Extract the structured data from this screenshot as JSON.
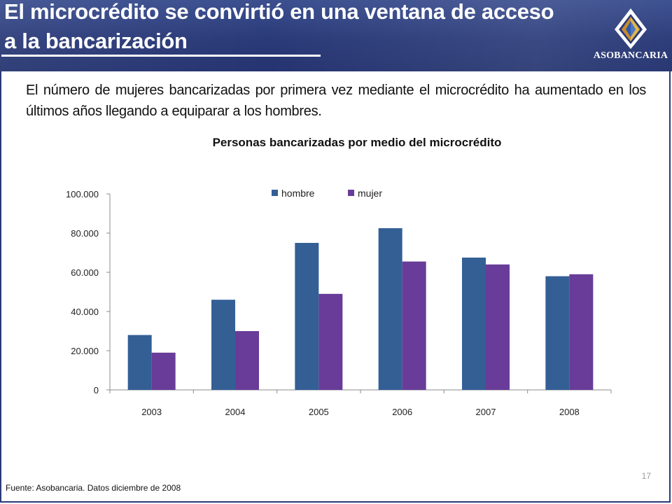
{
  "header": {
    "title": "El microcrédito se convirtió en una ventana de acceso a la bancarización",
    "background_color": "#2a3a78"
  },
  "logo": {
    "text": "ASOBANCARIA",
    "icon": "asobancaria-diamond-logo-icon"
  },
  "intro_text": "El número de mujeres bancarizadas por primera vez mediante el microcrédito ha aumentado en los últimos años llegando a equiparar a los hombres.",
  "chart_data": {
    "type": "bar",
    "title": "Personas bancarizadas por medio del microcrédito",
    "categories": [
      "2003",
      "2004",
      "2005",
      "2006",
      "2007",
      "2008"
    ],
    "series": [
      {
        "name": "hombre",
        "color": "#335f95",
        "values": [
          28000,
          46000,
          75000,
          82500,
          67500,
          58000
        ]
      },
      {
        "name": "mujer",
        "color": "#683c98",
        "values": [
          19000,
          30000,
          49000,
          65500,
          64000,
          59000
        ]
      }
    ],
    "ylim": [
      0,
      100000
    ],
    "yticks": [
      0,
      20000,
      40000,
      60000,
      80000,
      100000
    ],
    "ytick_labels": [
      "0",
      "20.000",
      "40.000",
      "60.000",
      "80.000",
      "100.000"
    ],
    "xlabel": "",
    "ylabel": "",
    "legend_position": "top-center",
    "grid": false
  },
  "footer": {
    "source": "Fuente: Asobancaria. Datos diciembre de 2008",
    "page_number": "17"
  }
}
